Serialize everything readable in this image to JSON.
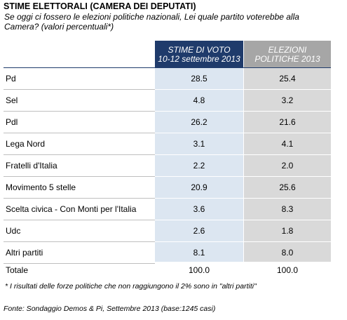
{
  "title": "STIME ELETTORALI  (CAMERA DEI DEPUTATI)",
  "subtitle": "Se oggi ci fossero le elezioni politiche nazionali, Lei quale partito voterebbe alla Camera? (valori percentuali*)",
  "columns": {
    "stime": {
      "line1": "STIME DI VOTO",
      "line2": "10-12 settembre 2013"
    },
    "elezioni": {
      "line1": "ELEZIONI",
      "line2": "POLITICHE 2013"
    }
  },
  "rows": [
    {
      "party": "Pd",
      "stime": "28.5",
      "elezioni": "25.4"
    },
    {
      "party": "Sel",
      "stime": "4.8",
      "elezioni": "3.2"
    },
    {
      "party": "Pdl",
      "stime": "26.2",
      "elezioni": "21.6"
    },
    {
      "party": "Lega Nord",
      "stime": "3.1",
      "elezioni": "4.1"
    },
    {
      "party": "Fratelli d'Italia",
      "stime": "2.2",
      "elezioni": "2.0"
    },
    {
      "party": "Movimento 5 stelle",
      "stime": "20.9",
      "elezioni": "25.6"
    },
    {
      "party": "Scelta civica - Con Monti per l'Italia",
      "stime": "3.6",
      "elezioni": "8.3"
    },
    {
      "party": "Udc",
      "stime": "2.6",
      "elezioni": "1.8"
    },
    {
      "party": "Altri partiti",
      "stime": "8.1",
      "elezioni": "8.0"
    }
  ],
  "total": {
    "label": "Totale",
    "stime": "100.0",
    "elezioni": "100.0"
  },
  "note": "* I risultati delle forze politiche che non raggiungono il 2% sono in \"altri partiti\"",
  "source": "Fonte: Sondaggio Demos & Pi, Settembre 2013 (base:1245 casi)",
  "colors": {
    "stime_header": "#1f3b6b",
    "stime_fill": "#dce6f1",
    "elezioni_header": "#a6a6a6",
    "elezioni_fill": "#d9d9d9"
  }
}
